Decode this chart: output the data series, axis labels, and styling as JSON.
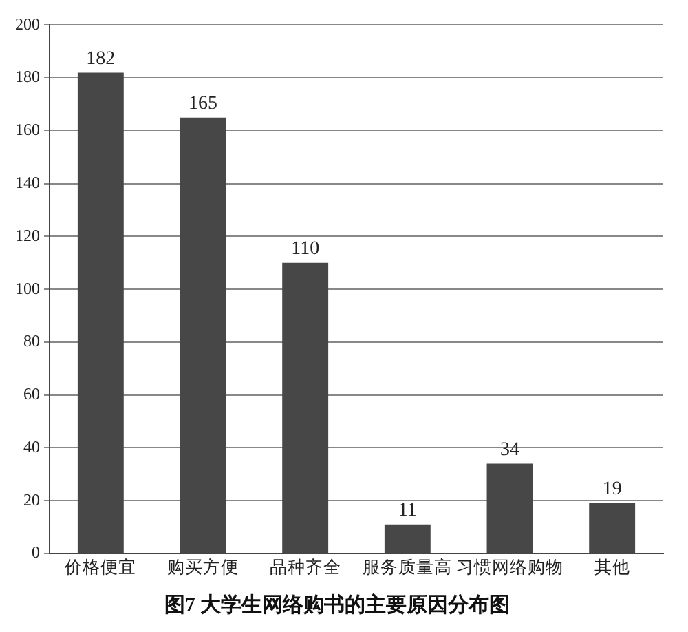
{
  "chart_data": {
    "type": "bar",
    "title": "图7 大学生网络购书的主要原因分布图",
    "categories": [
      "价格便宜",
      "购买方便",
      "品种齐全",
      "服务质量高",
      "习惯网络购物",
      "其他"
    ],
    "values": [
      182,
      165,
      110,
      11,
      34,
      19
    ],
    "color": "#474747",
    "ylim": [
      0,
      200
    ],
    "yticks": [
      0,
      20,
      40,
      60,
      80,
      100,
      120,
      140,
      160,
      180,
      200
    ],
    "grid": "y",
    "data_labels": true
  }
}
